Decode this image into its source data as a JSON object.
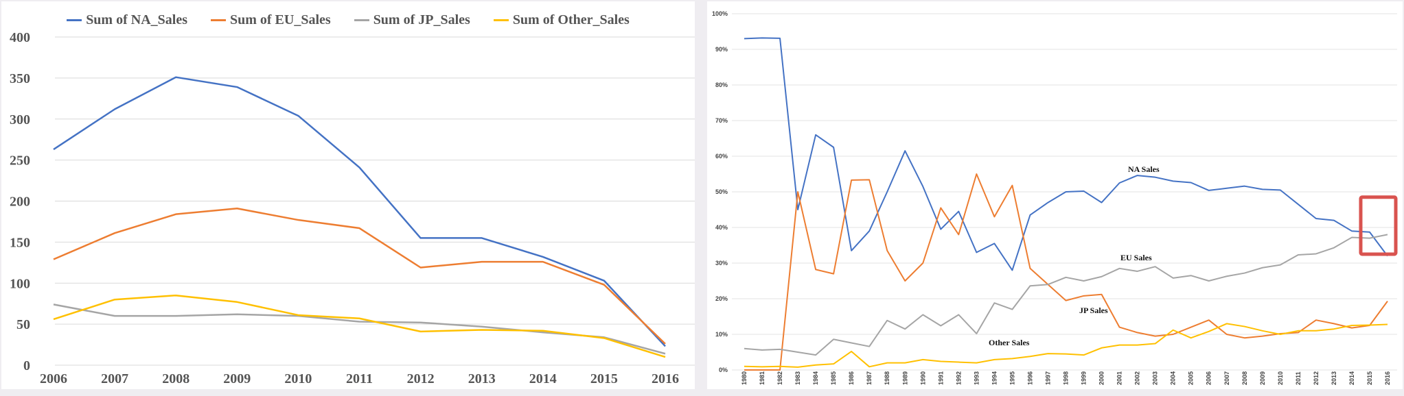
{
  "chart_data": [
    {
      "type": "line",
      "categories": [
        "2006",
        "2007",
        "2008",
        "2009",
        "2010",
        "2011",
        "2012",
        "2013",
        "2014",
        "2015",
        "2016"
      ],
      "ylim": [
        0,
        400
      ],
      "yticks": [
        "0",
        "50",
        "100",
        "150",
        "200",
        "250",
        "300",
        "350",
        "400"
      ],
      "grid": true,
      "legend_position": "top",
      "series": [
        {
          "name": "Sum of NA_Sales",
          "color": "#4472c4",
          "values": [
            263,
            312,
            351,
            339,
            304,
            241,
            155,
            155,
            132,
            103,
            23
          ]
        },
        {
          "name": "Sum of EU_Sales",
          "color": "#ed7d31",
          "values": [
            129,
            161,
            184,
            191,
            177,
            167,
            119,
            126,
            126,
            98,
            26
          ]
        },
        {
          "name": "Sum of JP_Sales",
          "color": "#a5a5a5",
          "values": [
            74,
            60,
            60,
            62,
            60,
            53,
            52,
            47,
            40,
            34,
            14
          ]
        },
        {
          "name": "Sum of Other_Sales",
          "color": "#ffc000",
          "values": [
            56,
            80,
            85,
            77,
            61,
            57,
            41,
            43,
            42,
            33,
            10
          ]
        }
      ]
    },
    {
      "type": "line",
      "categories": [
        "1980",
        "1981",
        "1982",
        "1983",
        "1984",
        "1985",
        "1986",
        "1987",
        "1988",
        "1989",
        "1990",
        "1991",
        "1992",
        "1993",
        "1994",
        "1995",
        "1996",
        "1997",
        "1998",
        "1999",
        "2000",
        "2001",
        "2002",
        "2003",
        "2004",
        "2005",
        "2006",
        "2007",
        "2008",
        "2009",
        "2010",
        "2011",
        "2012",
        "2013",
        "2014",
        "2015",
        "2016"
      ],
      "ylim": [
        0,
        100
      ],
      "yticks": [
        "0%",
        "10%",
        "20%",
        "30%",
        "40%",
        "50%",
        "60%",
        "70%",
        "80%",
        "90%",
        "100%"
      ],
      "grid": true,
      "annotations": [
        "NA Sales",
        "EU Sales",
        "JP Sales",
        "Other Sales"
      ],
      "highlight_categories": [
        "2015",
        "2016"
      ],
      "highlight_color": "#d9534f",
      "series": [
        {
          "color": "#4472c4",
          "values": [
            93,
            93.2,
            93.1,
            45,
            66,
            62.5,
            33.5,
            39,
            50,
            61.5,
            51.5,
            39.5,
            44.5,
            33,
            35.5,
            28,
            43.5,
            47,
            50,
            50.2,
            47,
            52.5,
            54.6,
            54.1,
            53,
            52.6,
            50.4,
            51,
            51.6,
            50.7,
            50.5,
            46.5,
            42.5,
            42,
            39,
            38.7,
            32
          ]
        },
        {
          "color": "#ed7d31",
          "values": [
            0,
            0,
            0,
            50,
            28.2,
            27,
            53.3,
            53.4,
            33.5,
            25,
            30,
            45.5,
            38,
            55,
            43,
            51.8,
            28.5,
            24,
            19.5,
            20.8,
            21.2,
            12,
            10.5,
            9.5,
            10,
            12,
            14,
            10,
            9,
            9.5,
            10.2,
            10.5,
            14,
            13,
            11.8,
            12.5,
            19.3
          ]
        },
        {
          "color": "#a5a5a5",
          "values": [
            6,
            5.6,
            5.8,
            5,
            4.2,
            8.6,
            7.6,
            6.6,
            13.9,
            11.5,
            15.5,
            12.4,
            15.5,
            10.2,
            18.8,
            17,
            23.6,
            24,
            26,
            25,
            26.2,
            28.5,
            27.7,
            29,
            25.8,
            26.5,
            25,
            26.3,
            27.2,
            28.7,
            29.5,
            32.3,
            32.6,
            34.3,
            37.2,
            37,
            38
          ]
        },
        {
          "color": "#ffc000",
          "values": [
            1,
            0.9,
            1,
            0.8,
            1.4,
            1.7,
            5.2,
            0.9,
            2,
            2,
            2.9,
            2.4,
            2.2,
            2,
            2.9,
            3.2,
            3.8,
            4.6,
            4.5,
            4.2,
            6.2,
            7,
            7,
            7.4,
            11.2,
            9,
            10.8,
            13,
            12.2,
            11,
            10,
            11,
            11,
            11.5,
            12.5,
            12.6,
            12.8
          ]
        }
      ]
    }
  ]
}
